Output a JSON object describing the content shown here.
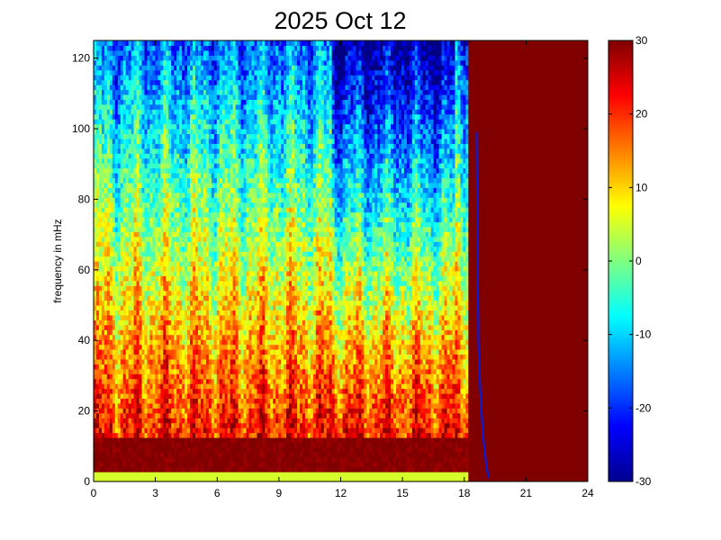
{
  "chart_data": {
    "type": "heatmap",
    "title": "2025 Oct 12",
    "xlabel": "",
    "ylabel": "frequency in mHz",
    "xlim": [
      0,
      24
    ],
    "ylim": [
      0,
      125
    ],
    "x_ticks": [
      0,
      3,
      6,
      9,
      12,
      15,
      18,
      21,
      24
    ],
    "y_ticks": [
      0,
      20,
      40,
      60,
      80,
      100,
      120
    ],
    "colorbar": {
      "colormap": "jet",
      "clim": [
        -30,
        30
      ],
      "ticks": [
        30,
        20,
        10,
        0,
        -10,
        -20,
        -30
      ]
    },
    "data_extent_hours": [
      0,
      18.2
    ],
    "saturated_region": {
      "x_from": 18.2,
      "x_to": 24,
      "value": 30
    },
    "trace_line": {
      "x_top": 18.6,
      "y_top": 99,
      "x_bottom": 19.2,
      "y_bottom": 1
    },
    "grid": false,
    "legend": "none"
  }
}
